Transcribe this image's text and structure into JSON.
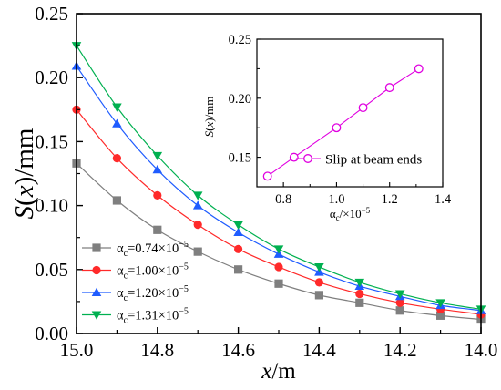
{
  "chart_data": [
    {
      "type": "line",
      "title": "",
      "xlabel": "x/m",
      "ylabel": "S(x)/mm",
      "xlim": [
        15.0,
        14.0
      ],
      "ylim": [
        0.0,
        0.25
      ],
      "x_reversed": true,
      "x_ticks": [
        "15.0",
        "14.8",
        "14.6",
        "14.4",
        "14.2",
        "14.0"
      ],
      "y_ticks": [
        "0.00",
        "0.05",
        "0.10",
        "0.15",
        "0.20",
        "0.25"
      ],
      "x": [
        15.0,
        14.9,
        14.8,
        14.7,
        14.6,
        14.5,
        14.4,
        14.3,
        14.2,
        14.1,
        14.0
      ],
      "legend_position": "bottom-left",
      "series": [
        {
          "name": "αc=0.74×10−5",
          "label_base": "α",
          "label_sub": "c",
          "label_rest": "=0.74×10",
          "label_sup": "−5",
          "color": "#7f7f7f",
          "marker": "square",
          "values": [
            0.133,
            0.104,
            0.081,
            0.064,
            0.05,
            0.039,
            0.03,
            0.024,
            0.018,
            0.014,
            0.011
          ]
        },
        {
          "name": "αc=1.00×10−5",
          "label_base": "α",
          "label_sub": "c",
          "label_rest": "=1.00×10",
          "label_sup": "−5",
          "color": "#ff2a2a",
          "marker": "circle",
          "values": [
            0.175,
            0.137,
            0.108,
            0.085,
            0.066,
            0.052,
            0.04,
            0.031,
            0.024,
            0.019,
            0.015
          ]
        },
        {
          "name": "αc=1.20×10−5",
          "label_base": "α",
          "label_sub": "c",
          "label_rest": "=1.20×10",
          "label_sup": "−5",
          "color": "#1f5cff",
          "marker": "triangle-up",
          "values": [
            0.209,
            0.164,
            0.128,
            0.1,
            0.079,
            0.062,
            0.048,
            0.037,
            0.029,
            0.022,
            0.018
          ]
        },
        {
          "name": "αc=1.31×10−5",
          "label_base": "α",
          "label_sub": "c",
          "label_rest": "=1.31×10",
          "label_sup": "−5",
          "color": "#00b050",
          "marker": "triangle-down",
          "values": [
            0.225,
            0.177,
            0.139,
            0.108,
            0.085,
            0.066,
            0.052,
            0.04,
            0.031,
            0.024,
            0.019
          ]
        }
      ]
    },
    {
      "type": "line",
      "title": "",
      "inset": true,
      "xlabel": "αc/×10−5",
      "xlabel_base": "α",
      "xlabel_sub": "c",
      "xlabel_rest": "/×10",
      "xlabel_sup": "−5",
      "ylabel": "S(x)/mm",
      "xlim": [
        0.7,
        1.4
      ],
      "ylim": [
        0.125,
        0.25
      ],
      "x_ticks": [
        "0.8",
        "1.0",
        "1.2",
        "1.4"
      ],
      "y_ticks": [
        "0.15",
        "0.20",
        "0.25"
      ],
      "legend_position": "right",
      "series": [
        {
          "name": "Slip at beam ends",
          "color": "#e000e0",
          "marker": "open-circle",
          "x": [
            0.74,
            0.84,
            1.0,
            1.1,
            1.2,
            1.31
          ],
          "values": [
            0.134,
            0.15,
            0.175,
            0.192,
            0.209,
            0.225
          ]
        }
      ]
    }
  ]
}
